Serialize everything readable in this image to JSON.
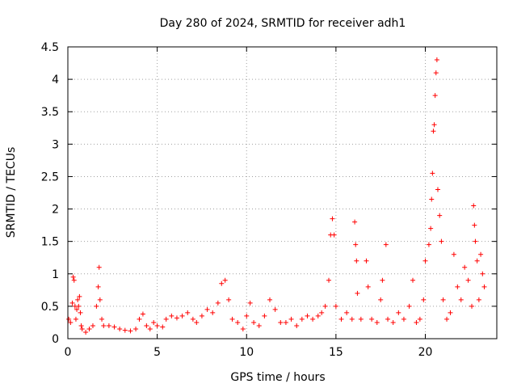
{
  "chart_data": {
    "type": "scatter",
    "title": "Day 280 of 2024, SRMTID for receiver adh1",
    "xlabel": "GPS time / hours",
    "ylabel": "SRMTID / TECUs",
    "xlim": [
      0,
      24
    ],
    "ylim": [
      0,
      4.5
    ],
    "x_ticks": [
      0,
      5,
      10,
      15,
      20
    ],
    "x_tick_labels": [
      "0",
      "5",
      "10",
      "15",
      "20"
    ],
    "y_ticks": [
      0,
      0.5,
      1,
      1.5,
      2,
      2.5,
      3,
      3.5,
      4,
      4.5
    ],
    "y_tick_labels": [
      "0",
      "0.5",
      "1",
      "1.5",
      "2",
      "2.5",
      "3",
      "3.5",
      "4",
      "4.5"
    ],
    "grid": true,
    "marker": "+",
    "colors": {
      "series": "#ff0000",
      "axis": "#000000",
      "grid": "#a0a0a0"
    },
    "series": [
      {
        "name": "SRMTID",
        "points": [
          [
            0.05,
            0.3
          ],
          [
            0.15,
            0.25
          ],
          [
            0.25,
            0.55
          ],
          [
            0.3,
            0.95
          ],
          [
            0.35,
            0.9
          ],
          [
            0.4,
            0.5
          ],
          [
            0.45,
            0.3
          ],
          [
            0.5,
            0.45
          ],
          [
            0.55,
            0.6
          ],
          [
            0.6,
            0.5
          ],
          [
            0.65,
            0.65
          ],
          [
            0.7,
            0.4
          ],
          [
            0.75,
            0.2
          ],
          [
            0.8,
            0.15
          ],
          [
            1.0,
            0.1
          ],
          [
            1.2,
            0.15
          ],
          [
            1.4,
            0.2
          ],
          [
            1.6,
            0.5
          ],
          [
            1.7,
            0.8
          ],
          [
            1.75,
            1.1
          ],
          [
            1.8,
            0.6
          ],
          [
            1.9,
            0.3
          ],
          [
            2.0,
            0.2
          ],
          [
            2.3,
            0.2
          ],
          [
            2.6,
            0.18
          ],
          [
            2.9,
            0.15
          ],
          [
            3.2,
            0.13
          ],
          [
            3.5,
            0.12
          ],
          [
            3.8,
            0.15
          ],
          [
            4.0,
            0.3
          ],
          [
            4.2,
            0.38
          ],
          [
            4.4,
            0.2
          ],
          [
            4.6,
            0.15
          ],
          [
            4.8,
            0.25
          ],
          [
            5.0,
            0.2
          ],
          [
            5.3,
            0.18
          ],
          [
            5.5,
            0.3
          ],
          [
            5.8,
            0.35
          ],
          [
            6.1,
            0.32
          ],
          [
            6.4,
            0.35
          ],
          [
            6.7,
            0.4
          ],
          [
            7.0,
            0.3
          ],
          [
            7.2,
            0.25
          ],
          [
            7.5,
            0.35
          ],
          [
            7.8,
            0.45
          ],
          [
            8.1,
            0.4
          ],
          [
            8.4,
            0.55
          ],
          [
            8.6,
            0.85
          ],
          [
            8.8,
            0.9
          ],
          [
            9.0,
            0.6
          ],
          [
            9.2,
            0.3
          ],
          [
            9.5,
            0.25
          ],
          [
            9.8,
            0.15
          ],
          [
            10.0,
            0.35
          ],
          [
            10.2,
            0.55
          ],
          [
            10.4,
            0.25
          ],
          [
            10.7,
            0.2
          ],
          [
            11.0,
            0.35
          ],
          [
            11.3,
            0.6
          ],
          [
            11.6,
            0.45
          ],
          [
            11.9,
            0.25
          ],
          [
            12.2,
            0.25
          ],
          [
            12.5,
            0.3
          ],
          [
            12.8,
            0.2
          ],
          [
            13.1,
            0.3
          ],
          [
            13.4,
            0.35
          ],
          [
            13.7,
            0.3
          ],
          [
            14.0,
            0.35
          ],
          [
            14.2,
            0.4
          ],
          [
            14.4,
            0.5
          ],
          [
            14.6,
            0.9
          ],
          [
            14.7,
            1.6
          ],
          [
            14.8,
            1.85
          ],
          [
            14.9,
            1.6
          ],
          [
            15.0,
            0.5
          ],
          [
            15.3,
            0.3
          ],
          [
            15.6,
            0.4
          ],
          [
            15.9,
            0.3
          ],
          [
            16.05,
            1.8
          ],
          [
            16.1,
            1.45
          ],
          [
            16.15,
            1.2
          ],
          [
            16.2,
            0.7
          ],
          [
            16.4,
            0.3
          ],
          [
            16.7,
            1.2
          ],
          [
            16.8,
            0.8
          ],
          [
            17.0,
            0.3
          ],
          [
            17.3,
            0.25
          ],
          [
            17.5,
            0.6
          ],
          [
            17.6,
            0.9
          ],
          [
            17.8,
            1.45
          ],
          [
            17.9,
            0.3
          ],
          [
            18.2,
            0.25
          ],
          [
            18.5,
            0.4
          ],
          [
            18.8,
            0.3
          ],
          [
            19.1,
            0.5
          ],
          [
            19.3,
            0.9
          ],
          [
            19.5,
            0.25
          ],
          [
            19.7,
            0.3
          ],
          [
            19.9,
            0.6
          ],
          [
            20.0,
            1.2
          ],
          [
            20.2,
            1.45
          ],
          [
            20.3,
            1.7
          ],
          [
            20.35,
            2.15
          ],
          [
            20.4,
            2.55
          ],
          [
            20.45,
            3.2
          ],
          [
            20.5,
            3.3
          ],
          [
            20.55,
            3.75
          ],
          [
            20.6,
            4.1
          ],
          [
            20.65,
            4.3
          ],
          [
            20.7,
            2.3
          ],
          [
            20.8,
            1.9
          ],
          [
            20.9,
            1.5
          ],
          [
            21.0,
            0.6
          ],
          [
            21.2,
            0.3
          ],
          [
            21.4,
            0.4
          ],
          [
            21.6,
            1.3
          ],
          [
            21.8,
            0.8
          ],
          [
            22.0,
            0.6
          ],
          [
            22.2,
            1.1
          ],
          [
            22.4,
            0.9
          ],
          [
            22.6,
            0.5
          ],
          [
            22.7,
            2.05
          ],
          [
            22.75,
            1.75
          ],
          [
            22.8,
            1.5
          ],
          [
            22.9,
            1.2
          ],
          [
            23.0,
            0.6
          ],
          [
            23.1,
            1.3
          ],
          [
            23.2,
            1.0
          ],
          [
            23.3,
            0.8
          ]
        ]
      }
    ]
  }
}
